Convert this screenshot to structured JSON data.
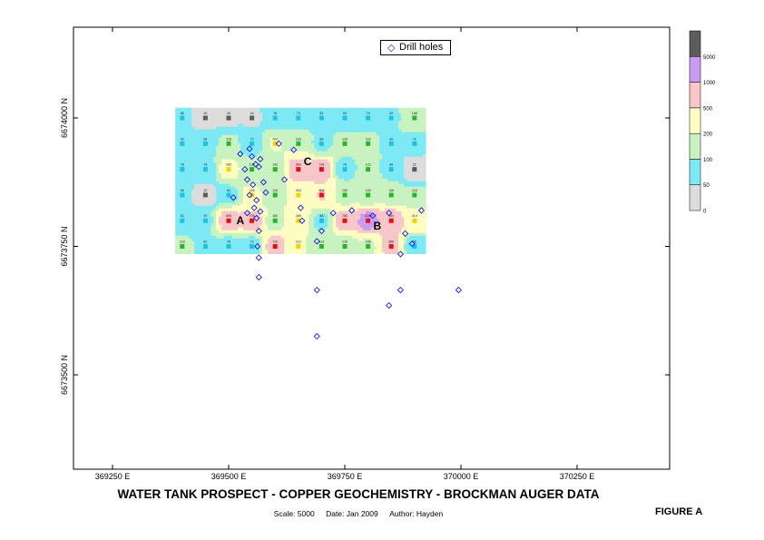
{
  "chart_data": {
    "type": "heatmap",
    "title": "WATER TANK PROSPECT - COPPER GEOCHEMISTRY - BROCKMAN AUGER DATA",
    "subtitle": {
      "scale": "Scale: 5000",
      "date": "Date: Jan 2009",
      "author": "Author: Hayden"
    },
    "figure_label": "FIGURE A",
    "x_axis": {
      "ticks": [
        369250,
        369500,
        369750,
        370000,
        370250
      ],
      "tick_labels": [
        "369250 E",
        "369500 E",
        "369750 E",
        "370000 E",
        "370250 E"
      ],
      "range": [
        369175,
        370340
      ]
    },
    "y_axis": {
      "ticks": [
        6673500,
        6673750,
        6674000
      ],
      "tick_labels": [
        "6673500 N",
        "6673750 N",
        "6674000 N"
      ],
      "range": [
        6673320,
        6674180
      ]
    },
    "grid_extent": {
      "x": [
        369385,
        369925
      ],
      "y": [
        6673735,
        6674020
      ]
    },
    "colorbar": {
      "breaks": [
        0,
        50,
        100,
        200,
        500,
        1000,
        5000
      ],
      "labels": [
        "0",
        "50",
        "100",
        "200",
        "500",
        "1000",
        "5000"
      ],
      "colors": [
        "#dcdcdc",
        "#7de9f5",
        "#c8f2c0",
        "#fdfdc3",
        "#f7c6c8",
        "#c99cf2",
        "#5c5c5c"
      ]
    },
    "anomaly_labels": [
      {
        "label": "A",
        "x": 369525,
        "y": 6673800
      },
      {
        "label": "B",
        "x": 369820,
        "y": 6673790
      },
      {
        "label": "C",
        "x": 369670,
        "y": 6673915
      }
    ],
    "samples": [
      {
        "x": 369400,
        "y": 6674000,
        "v": 55
      },
      {
        "x": 369450,
        "y": 6674000,
        "v": 30
      },
      {
        "x": 369500,
        "y": 6674000,
        "v": 45
      },
      {
        "x": 369550,
        "y": 6674000,
        "v": 44
      },
      {
        "x": 369600,
        "y": 6674000,
        "v": 76
      },
      {
        "x": 369650,
        "y": 6674000,
        "v": 73
      },
      {
        "x": 369700,
        "y": 6674000,
        "v": 52
      },
      {
        "x": 369750,
        "y": 6674000,
        "v": 69
      },
      {
        "x": 369800,
        "y": 6674000,
        "v": 70
      },
      {
        "x": 369850,
        "y": 6674000,
        "v": 92
      },
      {
        "x": 369900,
        "y": 6674000,
        "v": 188
      },
      {
        "x": 369400,
        "y": 6673950,
        "v": 92
      },
      {
        "x": 369450,
        "y": 6673950,
        "v": 84
      },
      {
        "x": 369500,
        "y": 6673950,
        "v": 118
      },
      {
        "x": 369550,
        "y": 6673950,
        "v": 72
      },
      {
        "x": 369600,
        "y": 6673950,
        "v": 204
      },
      {
        "x": 369650,
        "y": 6673950,
        "v": 183
      },
      {
        "x": 369700,
        "y": 6673950,
        "v": 88
      },
      {
        "x": 369750,
        "y": 6673950,
        "v": 126
      },
      {
        "x": 369800,
        "y": 6673950,
        "v": 118
      },
      {
        "x": 369850,
        "y": 6673950,
        "v": 90
      },
      {
        "x": 369900,
        "y": 6673950,
        "v": 72
      },
      {
        "x": 369400,
        "y": 6673900,
        "v": 78
      },
      {
        "x": 369450,
        "y": 6673900,
        "v": 76
      },
      {
        "x": 369500,
        "y": 6673900,
        "v": 260
      },
      {
        "x": 369550,
        "y": 6673900,
        "v": 138
      },
      {
        "x": 369600,
        "y": 6673900,
        "v": 142
      },
      {
        "x": 369650,
        "y": 6673900,
        "v": 850
      },
      {
        "x": 369700,
        "y": 6673900,
        "v": 738
      },
      {
        "x": 369750,
        "y": 6673900,
        "v": 76
      },
      {
        "x": 369800,
        "y": 6673900,
        "v": 122
      },
      {
        "x": 369850,
        "y": 6673900,
        "v": 88
      },
      {
        "x": 369900,
        "y": 6673900,
        "v": 22
      },
      {
        "x": 369400,
        "y": 6673850,
        "v": 56
      },
      {
        "x": 369450,
        "y": 6673850,
        "v": 32
      },
      {
        "x": 369500,
        "y": 6673850,
        "v": 84
      },
      {
        "x": 369550,
        "y": 6673850,
        "v": 226
      },
      {
        "x": 369600,
        "y": 6673850,
        "v": 118
      },
      {
        "x": 369650,
        "y": 6673850,
        "v": 304
      },
      {
        "x": 369700,
        "y": 6673850,
        "v": 504
      },
      {
        "x": 369750,
        "y": 6673850,
        "v": 160
      },
      {
        "x": 369800,
        "y": 6673850,
        "v": 140
      },
      {
        "x": 369850,
        "y": 6673850,
        "v": 138
      },
      {
        "x": 369900,
        "y": 6673850,
        "v": 118
      },
      {
        "x": 369400,
        "y": 6673800,
        "v": 52
      },
      {
        "x": 369450,
        "y": 6673800,
        "v": 92
      },
      {
        "x": 369500,
        "y": 6673800,
        "v": 808
      },
      {
        "x": 369550,
        "y": 6673800,
        "v": 706
      },
      {
        "x": 369600,
        "y": 6673800,
        "v": 160
      },
      {
        "x": 369650,
        "y": 6673800,
        "v": 380
      },
      {
        "x": 369700,
        "y": 6673800,
        "v": 88
      },
      {
        "x": 369750,
        "y": 6673800,
        "v": 780
      },
      {
        "x": 369800,
        "y": 6673800,
        "v": 1206
      },
      {
        "x": 369850,
        "y": 6673800,
        "v": 964
      },
      {
        "x": 369900,
        "y": 6673800,
        "v": 314
      },
      {
        "x": 369400,
        "y": 6673750,
        "v": 118
      },
      {
        "x": 369450,
        "y": 6673750,
        "v": 82
      },
      {
        "x": 369500,
        "y": 6673750,
        "v": 76
      },
      {
        "x": 369550,
        "y": 6673750,
        "v": 72
      },
      {
        "x": 369600,
        "y": 6673750,
        "v": 710
      },
      {
        "x": 369650,
        "y": 6673750,
        "v": 212
      },
      {
        "x": 369700,
        "y": 6673750,
        "v": 114
      },
      {
        "x": 369750,
        "y": 6673750,
        "v": 134
      },
      {
        "x": 369800,
        "y": 6673750,
        "v": 188
      },
      {
        "x": 369850,
        "y": 6673750,
        "v": 588
      },
      {
        "x": 369900,
        "y": 6673750,
        "v": 66
      }
    ],
    "drill_holes": {
      "name": "Drill holes",
      "points": [
        [
          369525,
          6673930
        ],
        [
          369535,
          6673900
        ],
        [
          369545,
          6673940
        ],
        [
          369550,
          6673925
        ],
        [
          369558,
          6673910
        ],
        [
          369565,
          6673905
        ],
        [
          369568,
          6673920
        ],
        [
          369540,
          6673880
        ],
        [
          369552,
          6673870
        ],
        [
          369575,
          6673875
        ],
        [
          369580,
          6673855
        ],
        [
          369560,
          6673840
        ],
        [
          369545,
          6673850
        ],
        [
          369510,
          6673845
        ],
        [
          369555,
          6673825
        ],
        [
          369560,
          6673805
        ],
        [
          369568,
          6673818
        ],
        [
          369540,
          6673815
        ],
        [
          369565,
          6673780
        ],
        [
          369562,
          6673750
        ],
        [
          369565,
          6673728
        ],
        [
          369565,
          6673690
        ],
        [
          369608,
          6673950
        ],
        [
          369620,
          6673880
        ],
        [
          369640,
          6673938
        ],
        [
          369655,
          6673825
        ],
        [
          369658,
          6673800
        ],
        [
          369700,
          6673780
        ],
        [
          369725,
          6673815
        ],
        [
          369690,
          6673760
        ],
        [
          369765,
          6673820
        ],
        [
          369810,
          6673810
        ],
        [
          369845,
          6673815
        ],
        [
          369880,
          6673775
        ],
        [
          369915,
          6673820
        ],
        [
          369870,
          6673735
        ],
        [
          369895,
          6673755
        ],
        [
          369690,
          6673665
        ],
        [
          369845,
          6673635
        ],
        [
          369870,
          6673665
        ],
        [
          369995,
          6673665
        ],
        [
          369690,
          6673575
        ]
      ]
    },
    "legend_position": "top-center"
  }
}
